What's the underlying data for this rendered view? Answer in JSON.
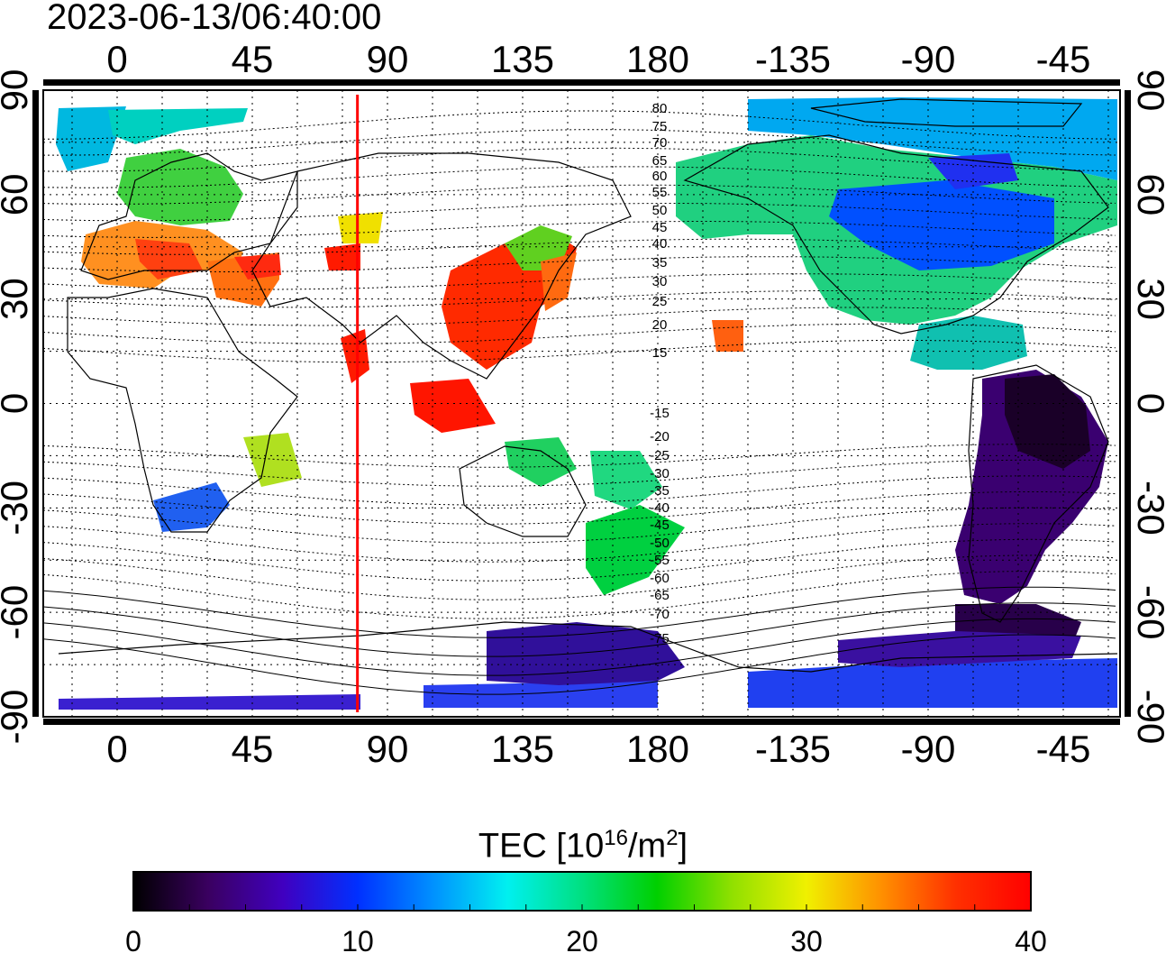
{
  "timestamp": "2023-06-13/06:40:00",
  "map": {
    "lon_ticks": [
      "0",
      "45",
      "90",
      "135",
      "180",
      "-135",
      "-90",
      "-45"
    ],
    "lat_ticks": [
      "90",
      "60",
      "30",
      "0",
      "-30",
      "-60",
      "-90"
    ],
    "meridian_marker_lon": 80,
    "marker_color": "#ff0000",
    "contours_north": [
      "80",
      "75",
      "70",
      "65",
      "60",
      "55",
      "50",
      "45",
      "40",
      "35",
      "30",
      "25",
      "20",
      "15"
    ],
    "contours_south": [
      "-15",
      "-20",
      "-25",
      "-30",
      "-35",
      "-40",
      "-45",
      "-50",
      "-55",
      "-60",
      "-65",
      "-70",
      "-75"
    ]
  },
  "colorbar": {
    "title_main": "TEC  [10",
    "title_exp1": "16",
    "title_mid": "/m",
    "title_exp2": "2",
    "title_end": "]",
    "ticks": [
      "0",
      "10",
      "20",
      "30",
      "40"
    ],
    "min": 0,
    "max": 40,
    "colormap": [
      "#000000",
      "#3a0060",
      "#4000c0",
      "#0030ff",
      "#0090ff",
      "#00f0f0",
      "#00e080",
      "#00d000",
      "#90e000",
      "#f0f000",
      "#ff9000",
      "#ff3000",
      "#ff0000"
    ]
  }
}
